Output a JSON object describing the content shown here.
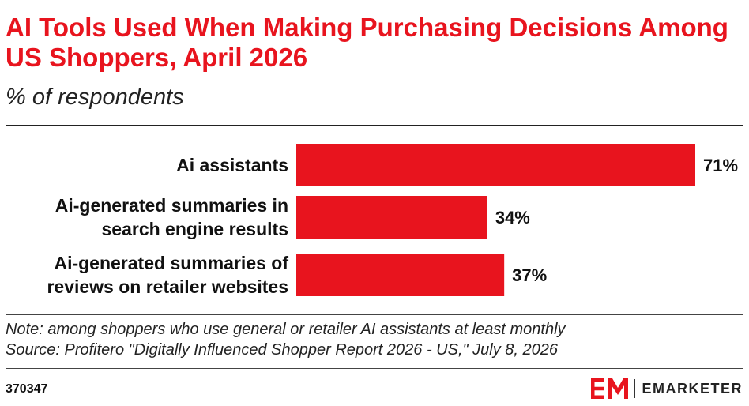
{
  "header": {
    "title": "AI Tools Used When Making Purchasing Decisions Among US Shoppers, April 2026",
    "subtitle": "% of respondents"
  },
  "chart_data": {
    "type": "bar",
    "orientation": "horizontal",
    "categories": [
      [
        "Ai assistants"
      ],
      [
        "Ai-generated summaries in",
        "search engine results"
      ],
      [
        "Ai-generated summaries of",
        "reviews on retailer websites"
      ]
    ],
    "values": [
      71,
      34,
      37
    ],
    "value_labels": [
      "71%",
      "34%",
      "37%"
    ],
    "xlim": [
      0,
      71
    ],
    "grid": false,
    "bar_color": "#e8141e"
  },
  "footer": {
    "note": "Note: among shoppers who use general or retailer AI assistants at least monthly",
    "source": "Source: Profitero \"Digitally Influenced Shopper Report 2026 - US,\" July 8, 2026",
    "chart_id": "370347",
    "brand": "EMARKETER",
    "brand_color": "#e8141e"
  }
}
